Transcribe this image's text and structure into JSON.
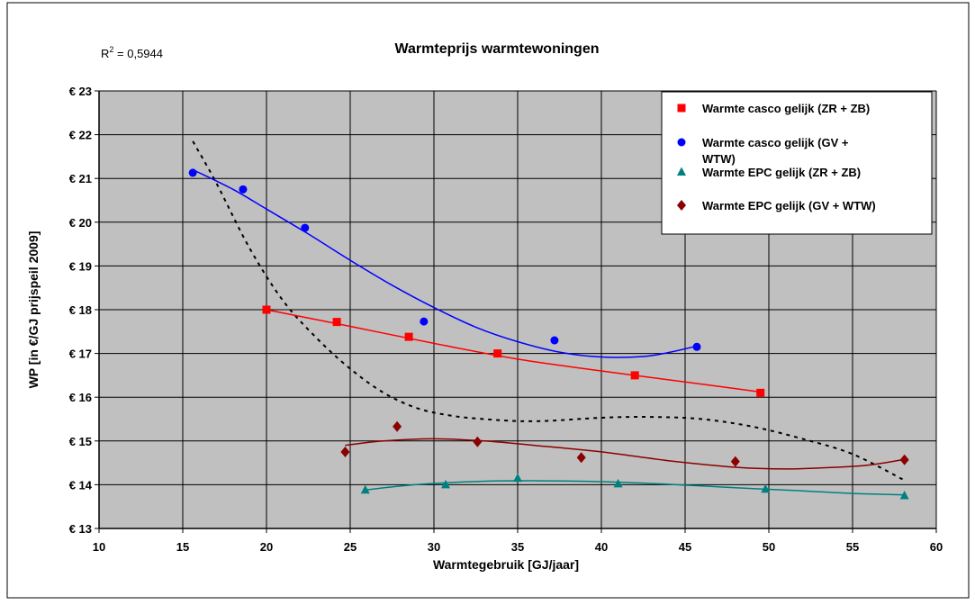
{
  "chart_data": {
    "type": "scatter",
    "title": "Warmteprijs warmtewoningen",
    "annotation": {
      "r2_label": "R",
      "r2_sup": "2",
      "r2_value": " = 0,5944"
    },
    "xlabel": "Warmtegebruik [GJ/jaar]",
    "ylabel": "WP [in €/GJ prijspeil 2009]",
    "xlim": [
      10,
      60
    ],
    "ylim": [
      13,
      23
    ],
    "xticks": [
      10,
      15,
      20,
      25,
      30,
      35,
      40,
      45,
      50,
      55,
      60
    ],
    "yticks": [
      13,
      14,
      15,
      16,
      17,
      18,
      19,
      20,
      21,
      22,
      23
    ],
    "ytick_labels": [
      "€ 13",
      "€ 14",
      "€ 15",
      "€ 16",
      "€ 17",
      "€ 18",
      "€ 19",
      "€ 20",
      "€ 21",
      "€ 22",
      "€ 23"
    ],
    "grid": true,
    "legend_position": "top-right",
    "series": [
      {
        "name": "Warmte casco gelijk (ZR + ZB)",
        "legend_lines": [
          "Warmte casco gelijk (ZR + ZB)"
        ],
        "marker": "square",
        "color": "#ff0000",
        "x": [
          20.0,
          24.2,
          28.5,
          33.8,
          42.0,
          49.5
        ],
        "y": [
          18.0,
          17.72,
          17.38,
          17.0,
          16.5,
          16.1
        ],
        "trend": [
          [
            20.0,
            18.0
          ],
          [
            25.0,
            17.62
          ],
          [
            30.0,
            17.23
          ],
          [
            35.0,
            16.87
          ],
          [
            40.0,
            16.6
          ],
          [
            45.0,
            16.35
          ],
          [
            49.5,
            16.12
          ]
        ]
      },
      {
        "name": "Warmte casco gelijk (GV + WTW)",
        "legend_lines": [
          "Warmte casco gelijk (GV +",
          "WTW)"
        ],
        "marker": "circle",
        "color": "#0000ff",
        "x": [
          15.6,
          18.6,
          22.3,
          29.4,
          37.2,
          45.7
        ],
        "y": [
          21.13,
          20.75,
          19.87,
          17.73,
          17.3,
          17.15
        ],
        "trend": [
          [
            15.6,
            21.2
          ],
          [
            18.0,
            20.75
          ],
          [
            20.0,
            20.3
          ],
          [
            22.5,
            19.73
          ],
          [
            25.0,
            19.13
          ],
          [
            27.5,
            18.56
          ],
          [
            30.0,
            18.05
          ],
          [
            32.5,
            17.6
          ],
          [
            35.0,
            17.27
          ],
          [
            37.5,
            17.03
          ],
          [
            40.0,
            16.92
          ],
          [
            42.5,
            16.93
          ],
          [
            44.0,
            17.02
          ],
          [
            45.7,
            17.17
          ]
        ]
      },
      {
        "name": "Warmte EPC gelijk (ZR + ZB)",
        "legend_lines": [
          "Warmte EPC gelijk (ZR + ZB)"
        ],
        "marker": "triangle",
        "color": "#008080",
        "x": [
          25.9,
          30.7,
          35.0,
          41.0,
          49.8,
          58.1
        ],
        "y": [
          13.88,
          14.0,
          14.15,
          14.02,
          13.9,
          13.75
        ],
        "trend": [
          [
            25.9,
            13.88
          ],
          [
            28.0,
            13.97
          ],
          [
            30.0,
            14.03
          ],
          [
            33.0,
            14.08
          ],
          [
            36.0,
            14.09
          ],
          [
            40.0,
            14.07
          ],
          [
            44.0,
            14.01
          ],
          [
            48.0,
            13.93
          ],
          [
            52.0,
            13.86
          ],
          [
            55.0,
            13.8
          ],
          [
            58.1,
            13.77
          ]
        ]
      },
      {
        "name": "Warmte EPC gelijk (GV + WTW)",
        "legend_lines": [
          "Warmte EPC gelijk (GV +  WTW)"
        ],
        "marker": "diamond",
        "color": "#8b0000",
        "x": [
          24.7,
          27.8,
          32.6,
          38.8,
          48.0,
          58.1
        ],
        "y": [
          14.75,
          15.33,
          14.98,
          14.62,
          14.53,
          14.57
        ],
        "trend": [
          [
            24.7,
            14.9
          ],
          [
            27.0,
            15.0
          ],
          [
            30.0,
            15.05
          ],
          [
            33.0,
            15.0
          ],
          [
            36.0,
            14.9
          ],
          [
            40.0,
            14.75
          ],
          [
            44.0,
            14.55
          ],
          [
            48.0,
            14.4
          ],
          [
            51.0,
            14.36
          ],
          [
            54.0,
            14.4
          ],
          [
            56.0,
            14.45
          ],
          [
            58.1,
            14.58
          ]
        ]
      }
    ],
    "overall_trend": {
      "style": "dotted",
      "color": "#000000",
      "points": [
        [
          15.6,
          21.85
        ],
        [
          17.0,
          20.9
        ],
        [
          19.0,
          19.4
        ],
        [
          21.0,
          18.2
        ],
        [
          23.0,
          17.35
        ],
        [
          25.0,
          16.65
        ],
        [
          27.0,
          16.1
        ],
        [
          29.0,
          15.75
        ],
        [
          31.0,
          15.58
        ],
        [
          33.0,
          15.5
        ],
        [
          36.0,
          15.45
        ],
        [
          40.0,
          15.53
        ],
        [
          43.0,
          15.55
        ],
        [
          46.0,
          15.5
        ],
        [
          49.0,
          15.33
        ],
        [
          52.0,
          15.05
        ],
        [
          55.0,
          14.7
        ],
        [
          58.1,
          14.1
        ]
      ]
    }
  }
}
